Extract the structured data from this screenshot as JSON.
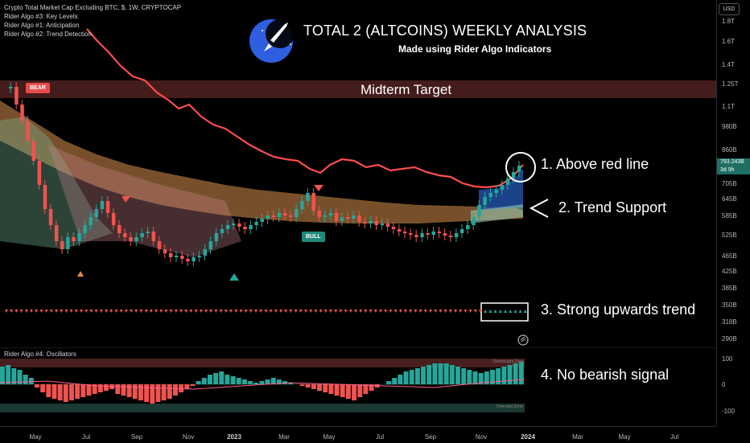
{
  "legend": {
    "symbol_line": "Crypto Total Market Cap Excluding BTC, $, 1W, CRYPTOCAP",
    "algo3": "Rider Algo #3: Key Levels",
    "algo1": "Rider Algo #1: Anticipation",
    "algo2": "Rider Algo #2: Trend Detection"
  },
  "header": {
    "title": "TOTAL 2 (ALTCOINS) WEEKLY ANALYSIS",
    "subtitle": "Made using Rider Algo Indicators"
  },
  "zone": {
    "label": "Midterm Target"
  },
  "badges": {
    "bear": "BEAR",
    "bull": "BULL"
  },
  "annotations": {
    "n1": "1. Above red line",
    "n2": "2. Trend Support",
    "n3": "3. Strong upwards trend",
    "n4": "4. No bearish signal"
  },
  "price_axis": {
    "currency": "USD",
    "ticks": [
      "1.8T",
      "1.6T",
      "1.4T",
      "1.25T",
      "1.1T",
      "980B",
      "860B",
      "705B",
      "645B",
      "585B",
      "525B",
      "465B",
      "425B",
      "385B",
      "350B",
      "318B",
      "290B"
    ],
    "current_price": "793.243B",
    "countdown": "3d 9h"
  },
  "oscillator": {
    "label": "Rider Algo #4: Oscillators",
    "overbought": "Overbought Zone",
    "oversold": "Oversold Zone",
    "ticks": [
      "100",
      "0",
      "-100"
    ]
  },
  "time_axis": [
    "May",
    "Jul",
    "Sep",
    "Nov",
    "2023",
    "Mar",
    "May",
    "Jul",
    "Sep",
    "Nov",
    "2024",
    "Mar",
    "May",
    "Jul"
  ],
  "colors": {
    "bull": "#26a69a",
    "bear": "#ef5350",
    "red_line": "#ff5252",
    "cloud_orange": "#e8a05a",
    "zone": "#5b2424"
  }
}
